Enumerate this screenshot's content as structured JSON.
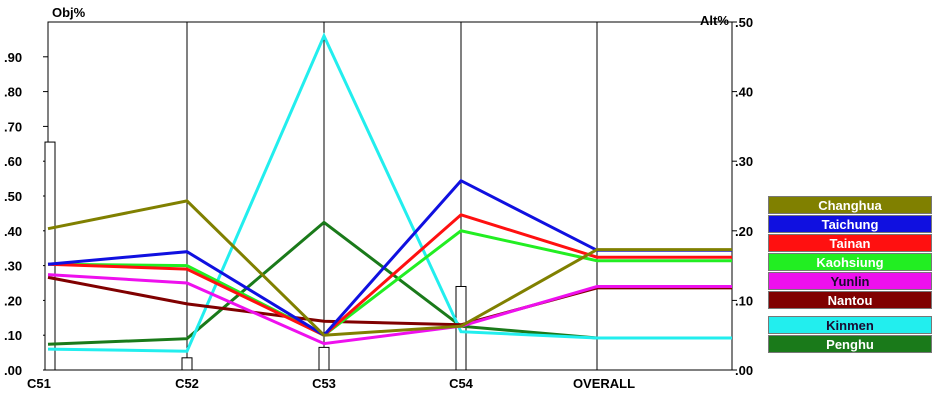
{
  "chart_data": {
    "type": "line",
    "left_axis_label": "Obj%",
    "right_axis_label": "Alt%",
    "categories": [
      "C51",
      "C52",
      "C53",
      "C54",
      "OVERALL"
    ],
    "left_ticks": [
      ".00",
      ".10",
      ".20",
      ".30",
      ".40",
      ".50",
      ".60",
      ".70",
      ".80",
      ".90"
    ],
    "right_ticks": [
      ".00",
      ".10",
      ".20",
      ".30",
      ".40",
      ".50"
    ],
    "ylim_left": [
      0,
      1.0
    ],
    "ylim_right": [
      0,
      0.5
    ],
    "objective_weights": [
      0.655,
      0.035,
      0.065,
      0.24
    ],
    "series": [
      {
        "name": "Changhua",
        "color": "#808000",
        "values": [
          0.203,
          0.243,
          0.05,
          0.063,
          0.173
        ]
      },
      {
        "name": "Taichung",
        "color": "#1010e0",
        "values": [
          0.152,
          0.17,
          0.05,
          0.272,
          0.172
        ]
      },
      {
        "name": "Tainan",
        "color": "#ff1010",
        "values": [
          0.152,
          0.145,
          0.05,
          0.223,
          0.162
        ]
      },
      {
        "name": "Kaohsiung",
        "color": "#22ee22",
        "values": [
          0.152,
          0.15,
          0.05,
          0.2,
          0.157
        ]
      },
      {
        "name": "Yunlin",
        "color": "#ee10ee",
        "values": [
          0.137,
          0.125,
          0.038,
          0.063,
          0.12
        ]
      },
      {
        "name": "Nantou",
        "color": "#800000",
        "values": [
          0.133,
          0.095,
          0.07,
          0.065,
          0.118
        ]
      },
      {
        "name": "Kinmen",
        "color": "#22eeee",
        "values": [
          0.03,
          0.027,
          0.48,
          0.055,
          0.046
        ]
      },
      {
        "name": "Penghu",
        "color": "#1a7a1a",
        "values": [
          0.037,
          0.045,
          0.212,
          0.063,
          0.046
        ]
      }
    ],
    "grid": false,
    "legend_position": "right"
  }
}
